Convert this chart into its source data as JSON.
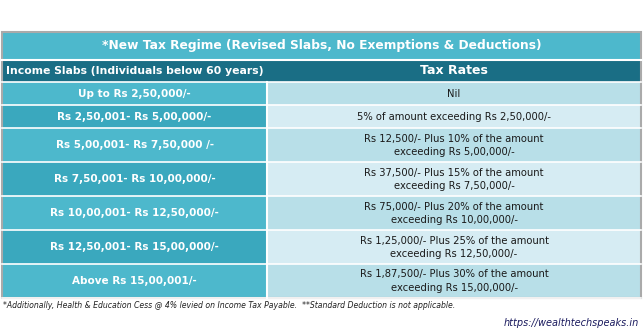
{
  "title": "*New Tax Regime (Revised Slabs, No Exemptions & Deductions)",
  "title_bg": "#4db8cc",
  "title_color": "#ffffff",
  "header_bg": "#1a6e85",
  "header_color": "#ffffff",
  "col1_header": "Income Slabs (Individuals below 60 years)",
  "col2_header": "Tax Rates",
  "rows": [
    {
      "slab": "Up to Rs 2,50,000/-",
      "rate": "Nil",
      "bg_col1": "#4db8cc",
      "bg_col2": "#b8dfe8"
    },
    {
      "slab": "Rs 2,50,001- Rs 5,00,000/-",
      "rate": "5% of amount exceeding Rs 2,50,000/-",
      "bg_col1": "#3aa8be",
      "bg_col2": "#d6ecf3"
    },
    {
      "slab": "Rs 5,00,001- Rs 7,50,000 /-",
      "rate": "Rs 12,500/- Plus 10% of the amount\nexceeding Rs 5,00,000/-",
      "bg_col1": "#4db8cc",
      "bg_col2": "#b8dfe8"
    },
    {
      "slab": "Rs 7,50,001- Rs 10,00,000/-",
      "rate": "Rs 37,500/- Plus 15% of the amount\nexceeding Rs 7,50,000/-",
      "bg_col1": "#3aa8be",
      "bg_col2": "#d6ecf3"
    },
    {
      "slab": "Rs 10,00,001- Rs 12,50,000/-",
      "rate": "Rs 75,000/- Plus 20% of the amount\nexceeding Rs 10,00,000/-",
      "bg_col1": "#4db8cc",
      "bg_col2": "#b8dfe8"
    },
    {
      "slab": "Rs 12,50,001- Rs 15,00,000/-",
      "rate": "Rs 1,25,000/- Plus 25% of the amount\nexceeding Rs 12,50,000/-",
      "bg_col1": "#3aa8be",
      "bg_col2": "#d6ecf3"
    },
    {
      "slab": "Above Rs 15,00,001/-",
      "rate": "Rs 1,87,500/- Plus 30% of the amount\nexceeding Rs 15,00,000/-",
      "bg_col1": "#4db8cc",
      "bg_col2": "#b8dfe8"
    }
  ],
  "footnote": "*Additionally, Health & Education Cess @ 4% levied on Income Tax Payable.  **Standard Deduction is not applicable.",
  "website": "https://wealthtechspeaks.in",
  "border_color": "#ffffff",
  "outer_bg": "#ffffff",
  "col_split": 0.415,
  "title_fontsize": 8.8,
  "header1_fontsize": 7.8,
  "header2_fontsize": 9.0,
  "slab_fontsize": 7.5,
  "rate_fontsize": 7.2
}
